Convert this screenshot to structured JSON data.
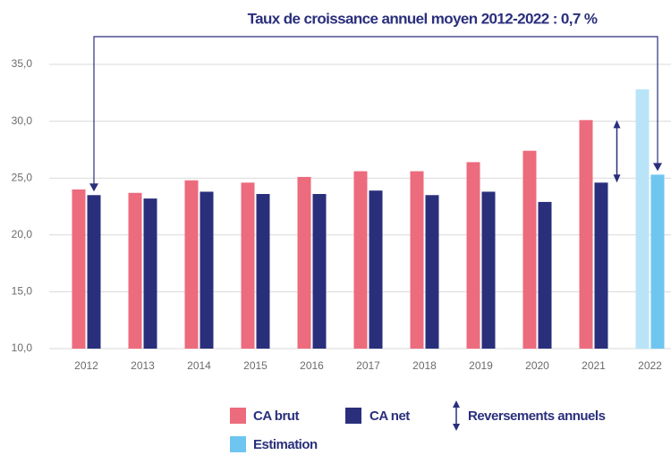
{
  "chart_data": {
    "type": "bar",
    "title": "Taux de croissance annuel moyen 2012-2022 : 0,7 %",
    "categories": [
      "2012",
      "2013",
      "2014",
      "2015",
      "2016",
      "2017",
      "2018",
      "2019",
      "2020",
      "2021",
      "2022"
    ],
    "series": [
      {
        "name": "CA brut",
        "color": "#ec6b7d",
        "colors": [
          "#ec6b7d",
          "#ec6b7d",
          "#ec6b7d",
          "#ec6b7d",
          "#ec6b7d",
          "#ec6b7d",
          "#ec6b7d",
          "#ec6b7d",
          "#ec6b7d",
          "#ec6b7d",
          "#b9e4f8"
        ],
        "values": [
          24.0,
          23.7,
          24.8,
          24.6,
          25.1,
          25.6,
          25.6,
          26.4,
          27.4,
          30.1,
          32.8
        ]
      },
      {
        "name": "CA net",
        "color": "#2a2f7c",
        "colors": [
          "#2a2f7c",
          "#2a2f7c",
          "#2a2f7c",
          "#2a2f7c",
          "#2a2f7c",
          "#2a2f7c",
          "#2a2f7c",
          "#2a2f7c",
          "#2a2f7c",
          "#2a2f7c",
          "#6ec6f0"
        ],
        "values": [
          23.5,
          23.2,
          23.8,
          23.6,
          23.6,
          23.9,
          23.5,
          23.8,
          22.9,
          24.6,
          25.3
        ]
      }
    ],
    "legend_extra": [
      {
        "name": "Reversements annuels",
        "color": "#2a2f7c"
      },
      {
        "name": "Estimation",
        "color": "#6ec6f0"
      }
    ],
    "ylim": [
      10,
      35
    ],
    "yticks": [
      {
        "value": 10,
        "label": "10,0"
      },
      {
        "value": 15,
        "label": "15,0"
      },
      {
        "value": 20,
        "label": "20,0"
      },
      {
        "value": 25,
        "label": "25,0"
      },
      {
        "value": 30,
        "label": "30,0"
      },
      {
        "value": 35,
        "label": "35,0"
      }
    ],
    "grid": true
  }
}
